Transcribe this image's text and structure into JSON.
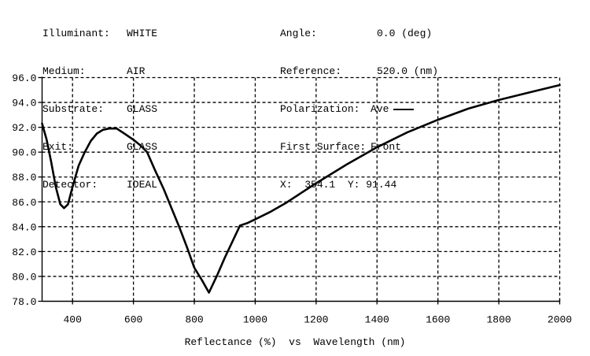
{
  "header": {
    "left": [
      {
        "label": "Illuminant:",
        "value": "WHITE"
      },
      {
        "label": "Medium:",
        "value": "AIR"
      },
      {
        "label": "Substrate:",
        "value": "GLASS"
      },
      {
        "label": "Exit:",
        "value": "GLASS"
      },
      {
        "label": "Detector:",
        "value": "IDEAL"
      }
    ],
    "right": [
      {
        "label": "Angle:",
        "value": "0.0 (deg)"
      },
      {
        "label": "Reference:",
        "value": "520.0 (nm)"
      },
      {
        "label": "Polarization:",
        "value": "Ave"
      },
      {
        "label": "First Surface:",
        "value": "Front"
      }
    ],
    "cursor": {
      "x_label": "X:",
      "x_value": "354.1",
      "y_label": "Y:",
      "y_value": "91.44"
    }
  },
  "chart_data": {
    "type": "line",
    "title": "",
    "xlabel": "Reflectance (%)  vs  Wavelength (nm)",
    "ylabel": "",
    "xlim": [
      300,
      2000
    ],
    "ylim": [
      78.0,
      96.0
    ],
    "grid": true,
    "legend": [
      {
        "name": "Ave",
        "color": "#000000"
      }
    ],
    "x_ticks": [
      "400",
      "600",
      "800",
      "1000",
      "1200",
      "1400",
      "1600",
      "1800",
      "2000"
    ],
    "y_ticks": [
      "78.0",
      "80.0",
      "82.0",
      "84.0",
      "86.0",
      "88.0",
      "90.0",
      "92.0",
      "94.0",
      "96.0"
    ],
    "series": [
      {
        "name": "Ave",
        "x": [
          300,
          315,
          330,
          345,
          360,
          372,
          385,
          400,
          420,
          440,
          460,
          480,
          500,
          520,
          545,
          570,
          600,
          625,
          645,
          670,
          700,
          725,
          750,
          775,
          800,
          825,
          848,
          875,
          900,
          925,
          950,
          975,
          1000,
          1050,
          1100,
          1150,
          1200,
          1300,
          1400,
          1500,
          1600,
          1700,
          1800,
          1900,
          2000
        ],
        "values": [
          92.3,
          91.0,
          89.2,
          87.2,
          85.8,
          85.5,
          85.8,
          87.2,
          88.9,
          90.0,
          90.9,
          91.5,
          91.8,
          91.9,
          91.9,
          91.5,
          91.0,
          90.5,
          90.0,
          88.6,
          87.0,
          85.5,
          84.0,
          82.4,
          80.7,
          79.7,
          78.7,
          80.1,
          81.5,
          82.8,
          84.1,
          84.3,
          84.6,
          85.2,
          85.9,
          86.7,
          87.5,
          89.0,
          90.4,
          91.6,
          92.6,
          93.5,
          94.2,
          94.8,
          95.4
        ]
      }
    ]
  }
}
